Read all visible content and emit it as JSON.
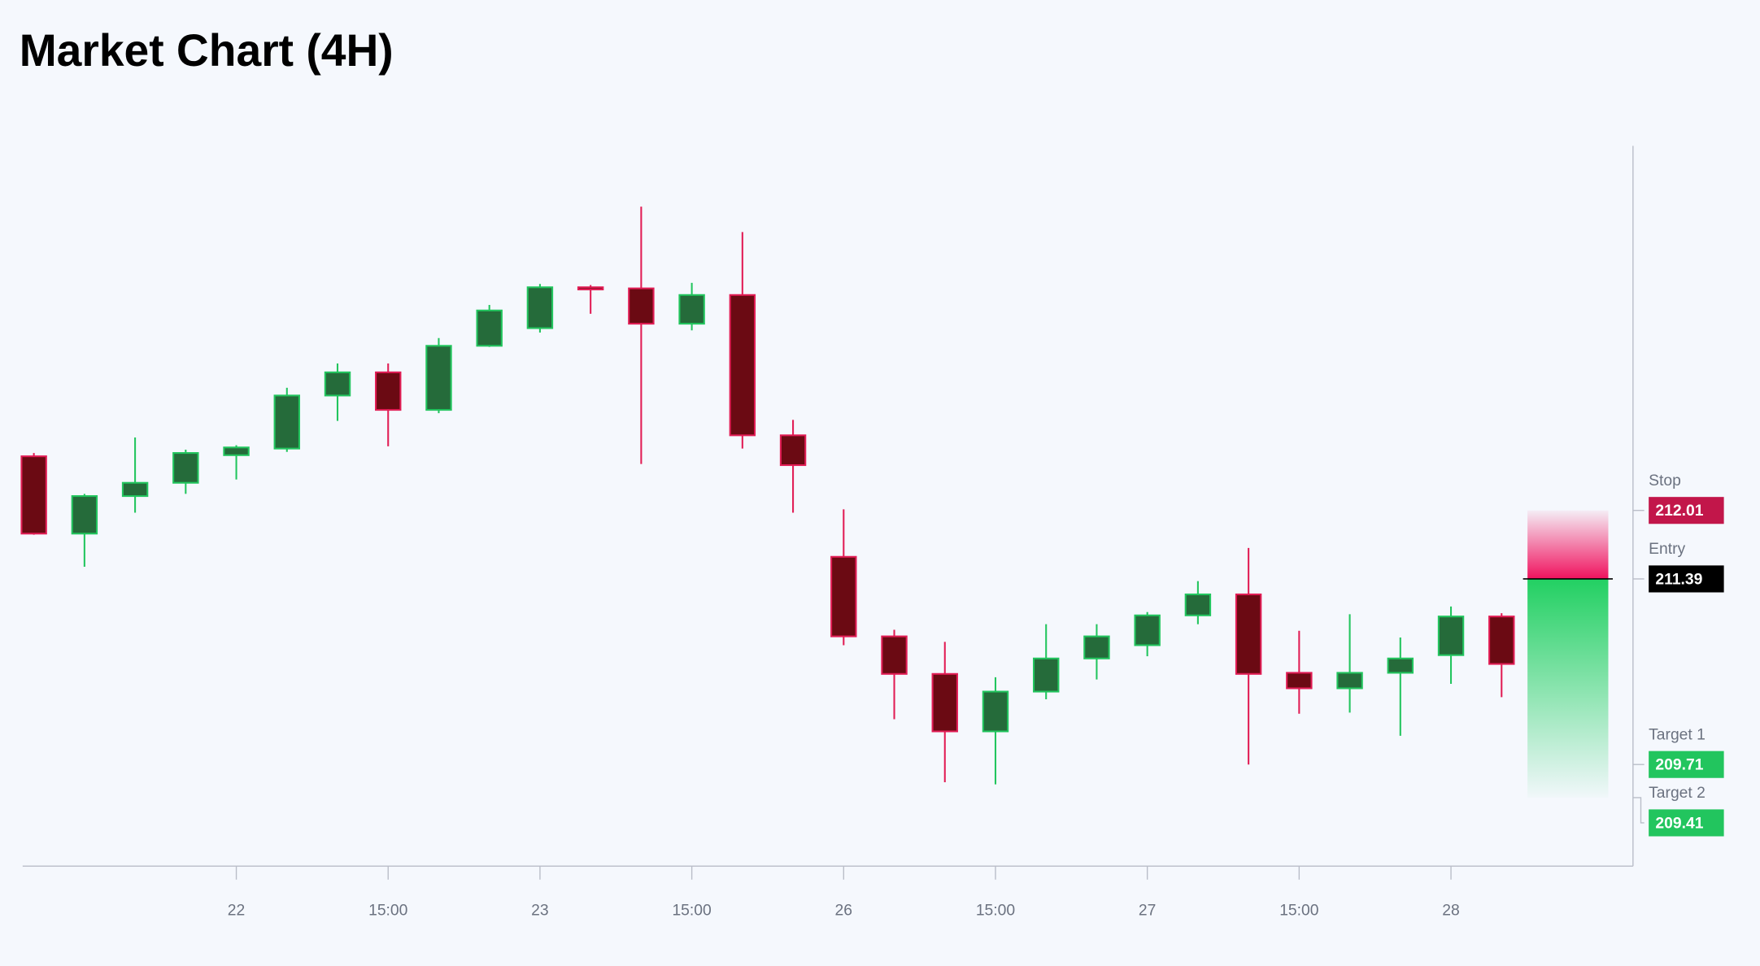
{
  "chart_data": {
    "type": "candlestick",
    "title": "Market Chart (4H)",
    "x": [
      null,
      null,
      null,
      null,
      "22",
      null,
      null,
      "15:00",
      null,
      null,
      "23",
      null,
      null,
      "15:00",
      null,
      null,
      "26",
      null,
      null,
      "15:00",
      null,
      null,
      "27",
      null,
      null,
      "15:00",
      null,
      null,
      "28",
      null
    ],
    "open": [
      212.5,
      211.8,
      212.14,
      212.26,
      212.51,
      212.57,
      213.05,
      213.26,
      212.92,
      213.5,
      213.66,
      214.03,
      214.02,
      213.7,
      213.96,
      212.69,
      211.59,
      210.87,
      210.53,
      210.01,
      210.37,
      210.67,
      210.79,
      211.06,
      211.25,
      210.54,
      210.4,
      210.54,
      210.7,
      211.05
    ],
    "high": [
      212.53,
      212.16,
      212.67,
      212.56,
      212.6,
      213.12,
      213.34,
      213.34,
      213.57,
      213.87,
      214.06,
      214.05,
      214.76,
      214.07,
      214.53,
      212.83,
      212.02,
      210.93,
      210.82,
      210.5,
      210.98,
      210.98,
      211.09,
      211.37,
      211.67,
      210.92,
      211.07,
      210.86,
      211.14,
      211.08
    ],
    "low": [
      211.79,
      211.5,
      211.99,
      212.16,
      212.29,
      212.54,
      212.82,
      212.59,
      212.89,
      213.49,
      213.62,
      213.79,
      212.43,
      213.64,
      212.57,
      211.99,
      210.79,
      210.12,
      209.55,
      209.53,
      210.3,
      210.48,
      210.69,
      210.98,
      209.71,
      210.17,
      210.18,
      209.97,
      210.44,
      210.32
    ],
    "close": [
      211.8,
      212.14,
      212.26,
      212.53,
      212.58,
      213.05,
      213.26,
      212.92,
      213.5,
      213.82,
      214.03,
      214.01,
      213.7,
      213.96,
      212.69,
      212.42,
      210.87,
      210.53,
      210.01,
      210.37,
      210.67,
      210.87,
      211.06,
      211.25,
      210.53,
      210.4,
      210.54,
      210.67,
      211.05,
      210.62
    ],
    "up_color": "#22c55e",
    "up_fill": "#256b3a",
    "down_color": "#e11d55",
    "down_fill": "#6b0a13",
    "ylim": [
      208.79,
      215.31
    ],
    "levels": [
      {
        "name": "Stop",
        "value": 212.01,
        "color": "#c2164a"
      },
      {
        "name": "Entry",
        "value": 211.39,
        "color": "#000000"
      },
      {
        "name": "Target 1",
        "value": 209.71,
        "color": "#22c55e"
      },
      {
        "name": "Target 2",
        "value": 209.41,
        "color": "#22c55e"
      }
    ]
  }
}
